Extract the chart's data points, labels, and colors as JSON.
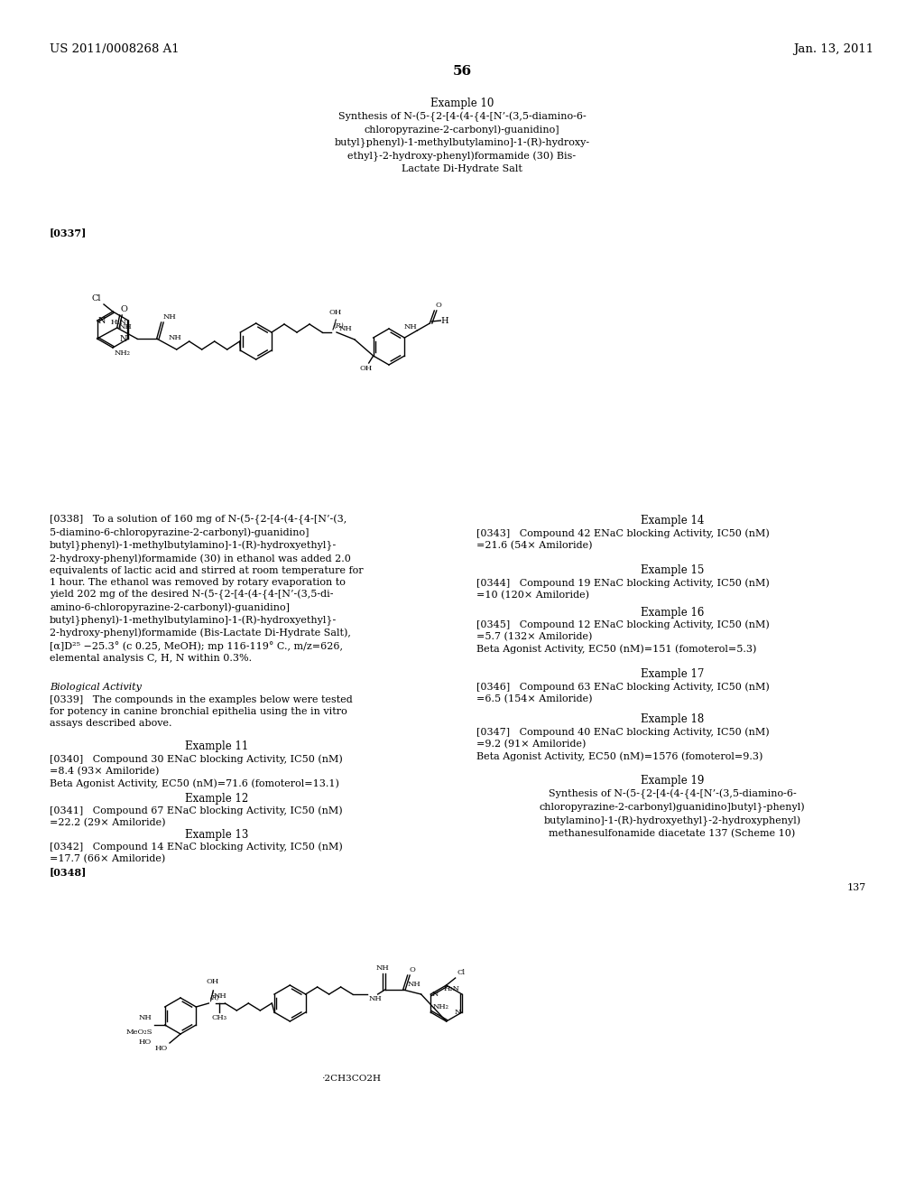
{
  "background_color": "#ffffff",
  "header_left": "US 2011/0008268 A1",
  "header_right": "Jan. 13, 2011",
  "page_number": "56",
  "footer_number": "137",
  "example10_title": "Example 10",
  "example10_subtitle": "Synthesis of N-(5-{2-[4-(4-{4-[N’-(3,5-diamino-6-\nchloropyrazine-2-carbonyl)-guanidino]\nbutyl}phenyl)-1-methylbutylamino]-1-(R)-hydroxy-\nethyl}-2-hydroxy-phenyl)formamide (30) Bis-\nLactate Di-Hydrate Salt",
  "ref0337": "[0337]",
  "ref0338_text": "[0338]   To a solution of 160 mg of N-(5-{2-[4-(4-{4-[N’-(3,\n5-diamino-6-chloropyrazine-2-carbonyl)-guanidino]\nbutyl}phenyl)-1-methylbutylamino]-1-(R)-hydroxyethyl}-\n2-hydroxy-phenyl)formamide (30) in ethanol was added 2.0\nequivalents of lactic acid and stirred at room temperature for\n1 hour. The ethanol was removed by rotary evaporation to\nyield 202 mg of the desired N-(5-{2-[4-(4-{4-[N’-(3,5-di-\namino-6-chloropyrazine-2-carbonyl)-guanidino]\nbutyl}phenyl)-1-methylbutylamino]-1-(R)-hydroxyethyl}-\n2-hydroxy-phenyl)formamide (Bis-Lactate Di-Hydrate Salt),\n[α]D²⁵ −25.3° (c 0.25, MeOH); mp 116-119° C., m/z=626,\nelemental analysis C, H, N within 0.3%.",
  "biological_activity": "Biological Activity",
  "ref0339_text": "[0339]   The compounds in the examples below were tested\nfor potency in canine bronchial epithelia using the in vitro\nassays described above.",
  "example11_title": "Example 11",
  "ref0340_text": "[0340]   Compound 30 ENaC blocking Activity, IC50 (nM)\n=8.4 (93× Amiloride)\nBeta Agonist Activity, EC50 (nM)=71.6 (fomoterol=13.1)",
  "example12_title": "Example 12",
  "ref0341_text": "[0341]   Compound 67 ENaC blocking Activity, IC50 (nM)\n=22.2 (29× Amiloride)",
  "example13_title": "Example 13",
  "ref0342_text": "[0342]   Compound 14 ENaC blocking Activity, IC50 (nM)\n=17.7 (66× Amiloride)",
  "example14_title": "Example 14",
  "ref0343_text": "[0343]   Compound 42 ENaC blocking Activity, IC50 (nM)\n=21.6 (54× Amiloride)",
  "example15_title": "Example 15",
  "ref0344_text": "[0344]   Compound 19 ENaC blocking Activity, IC50 (nM)\n=10 (120× Amiloride)",
  "example16_title": "Example 16",
  "ref0345_text": "[0345]   Compound 12 ENaC blocking Activity, IC50 (nM)\n=5.7 (132× Amiloride)\nBeta Agonist Activity, EC50 (nM)=151 (fomoterol=5.3)",
  "example17_title": "Example 17",
  "ref0346_text": "[0346]   Compound 63 ENaC blocking Activity, IC50 (nM)\n=6.5 (154× Amiloride)",
  "example18_title": "Example 18",
  "ref0347_text": "[0347]   Compound 40 ENaC blocking Activity, IC50 (nM)\n=9.2 (91× Amiloride)\nBeta Agonist Activity, EC50 (nM)=1576 (fomoterol=9.3)",
  "example19_title": "Example 19",
  "example19_subtitle": "Synthesis of N-(5-{2-[4-(4-{4-[N’-(3,5-diamino-6-\nchloropyrazine-2-carbonyl)guanidino]butyl}-phenyl)\nbutylamino]-1-(R)-hydroxyethyl}-2-hydroxyphenyl)\nmethanesulfonamide diacetate 137 (Scheme 10)",
  "ref0348": "[0348]",
  "salt_label": "⋅2CH3CO2H"
}
